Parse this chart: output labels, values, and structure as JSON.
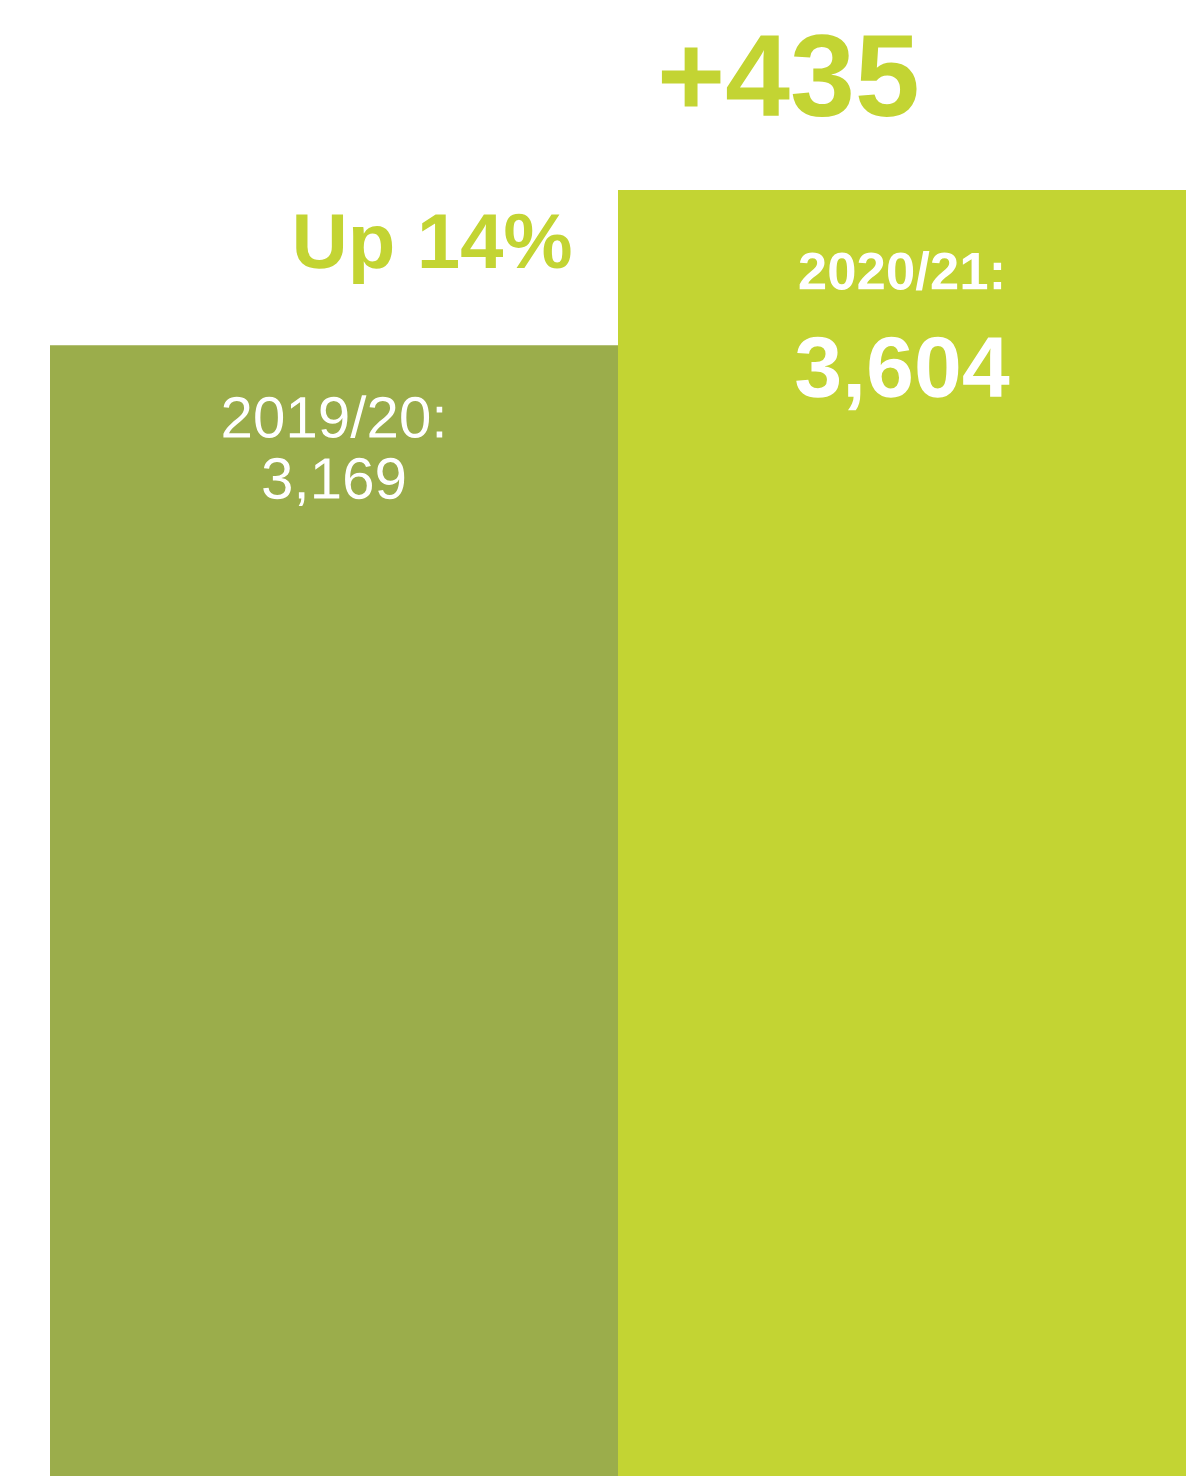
{
  "chart_data": {
    "type": "bar",
    "categories": [
      null,
      null
    ],
    "values": [
      3169,
      3604
    ],
    "colors": [
      "#9bad4b",
      "#c3d433"
    ],
    "value_labels": [
      "2019/20:\n3,169",
      "2020/21:\n3,604"
    ],
    "annotations": [
      "Up 14%",
      "+435"
    ]
  }
}
